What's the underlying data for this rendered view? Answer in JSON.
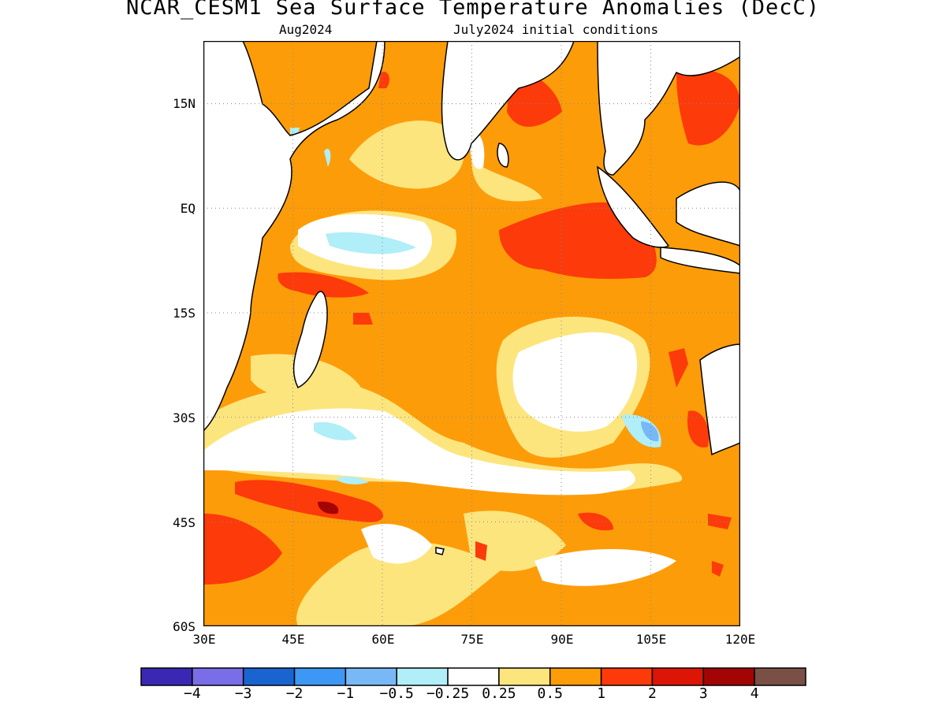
{
  "title": "NCAR_CESM1 Sea Surface Temperature Anomalies (DecC)",
  "subtitle_left": "Aug2024",
  "subtitle_right": "July2024 initial conditions",
  "map": {
    "lat_labels": [
      "15N",
      "EQ",
      "15S",
      "30S",
      "45S",
      "60S"
    ],
    "lon_labels": [
      "30E",
      "45E",
      "60E",
      "75E",
      "90E",
      "105E",
      "120E"
    ],
    "lon_range": [
      30,
      120
    ],
    "lat_range": [
      -60,
      24
    ],
    "gridlines": "dotted"
  },
  "colorbar": {
    "colors": [
      "#3a28b4",
      "#7a6ee8",
      "#1a64d2",
      "#3c98f4",
      "#78b8f6",
      "#b0eef8",
      "#ffffff",
      "#fde57e",
      "#fd9c09",
      "#fd3a0a",
      "#dc1506",
      "#a30404",
      "#7a5046"
    ],
    "tick_labels": [
      "−4",
      "−3",
      "−2",
      "−1",
      "−0.5",
      "−0.25",
      "0.25",
      "0.5",
      "1",
      "2",
      "3",
      "4"
    ]
  }
}
